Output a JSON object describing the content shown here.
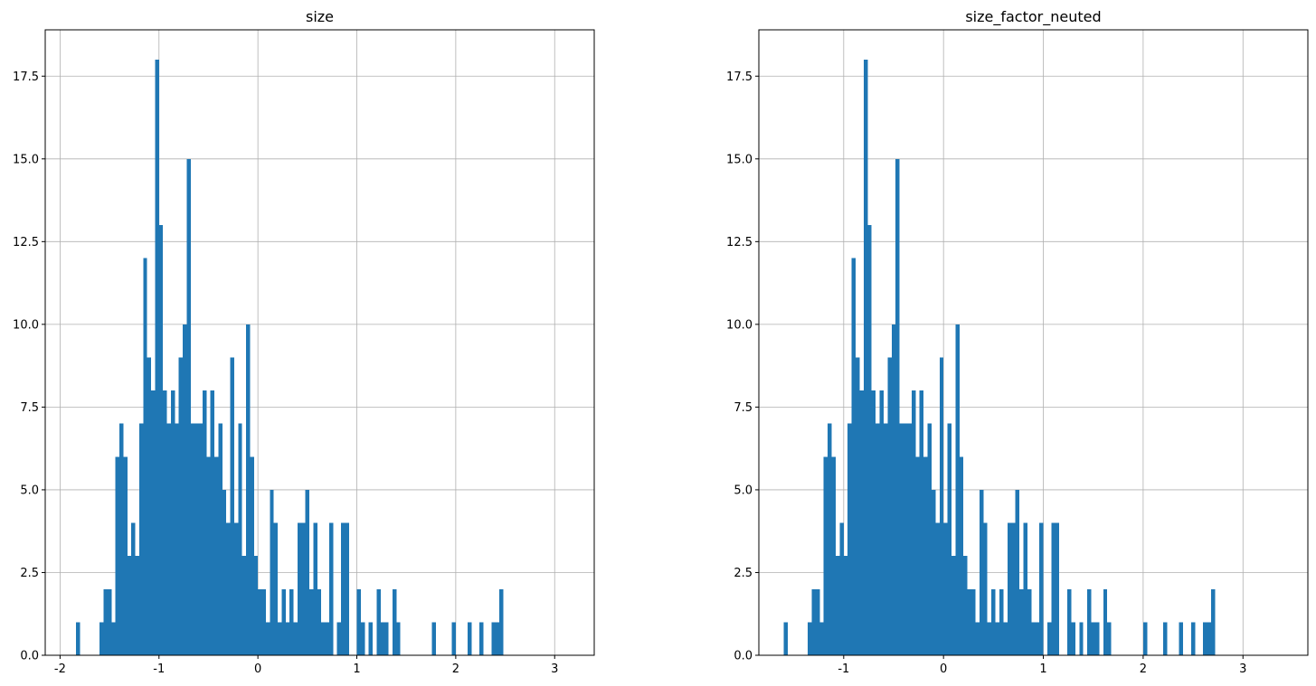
{
  "chart_data": [
    {
      "type": "bar",
      "title": "size",
      "xlabel": "",
      "ylabel": "",
      "xlim": [
        -2.15,
        3.4
      ],
      "ylim": [
        0,
        18.9
      ],
      "xticks": [
        -2,
        -1,
        0,
        1,
        2,
        3
      ],
      "yticks": [
        0.0,
        2.5,
        5.0,
        7.5,
        10.0,
        12.5,
        15.0,
        17.5
      ],
      "grid": true,
      "color": "#1f77b4",
      "bin_width": 0.04,
      "bins": [
        {
          "x": -1.84,
          "y": 1
        },
        {
          "x": -1.6,
          "y": 1
        },
        {
          "x": -1.56,
          "y": 2
        },
        {
          "x": -1.52,
          "y": 2
        },
        {
          "x": -1.48,
          "y": 1
        },
        {
          "x": -1.44,
          "y": 6
        },
        {
          "x": -1.4,
          "y": 7
        },
        {
          "x": -1.36,
          "y": 6
        },
        {
          "x": -1.32,
          "y": 3
        },
        {
          "x": -1.28,
          "y": 4
        },
        {
          "x": -1.24,
          "y": 3
        },
        {
          "x": -1.2,
          "y": 7
        },
        {
          "x": -1.16,
          "y": 12
        },
        {
          "x": -1.12,
          "y": 9
        },
        {
          "x": -1.08,
          "y": 8
        },
        {
          "x": -1.04,
          "y": 18
        },
        {
          "x": -1.0,
          "y": 13
        },
        {
          "x": -0.96,
          "y": 8
        },
        {
          "x": -0.92,
          "y": 7
        },
        {
          "x": -0.88,
          "y": 8
        },
        {
          "x": -0.84,
          "y": 7
        },
        {
          "x": -0.8,
          "y": 9
        },
        {
          "x": -0.76,
          "y": 10
        },
        {
          "x": -0.72,
          "y": 15
        },
        {
          "x": -0.68,
          "y": 7
        },
        {
          "x": -0.64,
          "y": 7
        },
        {
          "x": -0.6,
          "y": 7
        },
        {
          "x": -0.56,
          "y": 8
        },
        {
          "x": -0.52,
          "y": 6
        },
        {
          "x": -0.48,
          "y": 8
        },
        {
          "x": -0.44,
          "y": 6
        },
        {
          "x": -0.4,
          "y": 7
        },
        {
          "x": -0.36,
          "y": 5
        },
        {
          "x": -0.32,
          "y": 4
        },
        {
          "x": -0.28,
          "y": 9
        },
        {
          "x": -0.24,
          "y": 4
        },
        {
          "x": -0.2,
          "y": 7
        },
        {
          "x": -0.16,
          "y": 3
        },
        {
          "x": -0.12,
          "y": 10
        },
        {
          "x": -0.08,
          "y": 6
        },
        {
          "x": -0.04,
          "y": 3
        },
        {
          "x": 0.0,
          "y": 2
        },
        {
          "x": 0.04,
          "y": 2
        },
        {
          "x": 0.08,
          "y": 1
        },
        {
          "x": 0.12,
          "y": 5
        },
        {
          "x": 0.16,
          "y": 4
        },
        {
          "x": 0.2,
          "y": 1
        },
        {
          "x": 0.24,
          "y": 2
        },
        {
          "x": 0.28,
          "y": 1
        },
        {
          "x": 0.32,
          "y": 2
        },
        {
          "x": 0.36,
          "y": 1
        },
        {
          "x": 0.4,
          "y": 4
        },
        {
          "x": 0.44,
          "y": 4
        },
        {
          "x": 0.48,
          "y": 5
        },
        {
          "x": 0.52,
          "y": 2
        },
        {
          "x": 0.56,
          "y": 4
        },
        {
          "x": 0.6,
          "y": 2
        },
        {
          "x": 0.64,
          "y": 1
        },
        {
          "x": 0.68,
          "y": 1
        },
        {
          "x": 0.72,
          "y": 4
        },
        {
          "x": 0.76,
          "y": 0
        },
        {
          "x": 0.8,
          "y": 1
        },
        {
          "x": 0.84,
          "y": 4
        },
        {
          "x": 0.88,
          "y": 4
        },
        {
          "x": 0.92,
          "y": 0
        },
        {
          "x": 1.0,
          "y": 2
        },
        {
          "x": 1.04,
          "y": 1
        },
        {
          "x": 1.08,
          "y": 0
        },
        {
          "x": 1.12,
          "y": 1
        },
        {
          "x": 1.2,
          "y": 2
        },
        {
          "x": 1.24,
          "y": 1
        },
        {
          "x": 1.28,
          "y": 1
        },
        {
          "x": 1.32,
          "y": 0
        },
        {
          "x": 1.36,
          "y": 2
        },
        {
          "x": 1.4,
          "y": 1
        },
        {
          "x": 1.76,
          "y": 1
        },
        {
          "x": 1.96,
          "y": 1
        },
        {
          "x": 2.12,
          "y": 1
        },
        {
          "x": 2.24,
          "y": 1
        },
        {
          "x": 2.36,
          "y": 1
        },
        {
          "x": 2.4,
          "y": 1
        },
        {
          "x": 2.44,
          "y": 2
        }
      ]
    },
    {
      "type": "bar",
      "title": "size_factor_neuted",
      "xlabel": "",
      "ylabel": "",
      "xlim": [
        -1.85,
        3.65
      ],
      "ylim": [
        0,
        18.9
      ],
      "xticks": [
        -1,
        0,
        1,
        2,
        3
      ],
      "yticks": [
        0.0,
        2.5,
        5.0,
        7.5,
        10.0,
        12.5,
        15.0,
        17.5
      ],
      "grid": true,
      "color": "#1f77b4",
      "bin_width": 0.04,
      "bins": [
        {
          "x": -1.6,
          "y": 1
        },
        {
          "x": -1.36,
          "y": 1
        },
        {
          "x": -1.32,
          "y": 2
        },
        {
          "x": -1.28,
          "y": 2
        },
        {
          "x": -1.24,
          "y": 1
        },
        {
          "x": -1.2,
          "y": 6
        },
        {
          "x": -1.16,
          "y": 7
        },
        {
          "x": -1.12,
          "y": 6
        },
        {
          "x": -1.08,
          "y": 3
        },
        {
          "x": -1.04,
          "y": 4
        },
        {
          "x": -1.0,
          "y": 3
        },
        {
          "x": -0.96,
          "y": 7
        },
        {
          "x": -0.92,
          "y": 12
        },
        {
          "x": -0.88,
          "y": 9
        },
        {
          "x": -0.84,
          "y": 8
        },
        {
          "x": -0.8,
          "y": 18
        },
        {
          "x": -0.76,
          "y": 13
        },
        {
          "x": -0.72,
          "y": 8
        },
        {
          "x": -0.68,
          "y": 7
        },
        {
          "x": -0.64,
          "y": 8
        },
        {
          "x": -0.6,
          "y": 7
        },
        {
          "x": -0.56,
          "y": 9
        },
        {
          "x": -0.52,
          "y": 10
        },
        {
          "x": -0.48,
          "y": 15
        },
        {
          "x": -0.44,
          "y": 7
        },
        {
          "x": -0.4,
          "y": 7
        },
        {
          "x": -0.36,
          "y": 7
        },
        {
          "x": -0.32,
          "y": 8
        },
        {
          "x": -0.28,
          "y": 6
        },
        {
          "x": -0.24,
          "y": 8
        },
        {
          "x": -0.2,
          "y": 6
        },
        {
          "x": -0.16,
          "y": 7
        },
        {
          "x": -0.12,
          "y": 5
        },
        {
          "x": -0.08,
          "y": 4
        },
        {
          "x": -0.04,
          "y": 9
        },
        {
          "x": 0.0,
          "y": 4
        },
        {
          "x": 0.04,
          "y": 7
        },
        {
          "x": 0.08,
          "y": 3
        },
        {
          "x": 0.12,
          "y": 10
        },
        {
          "x": 0.16,
          "y": 6
        },
        {
          "x": 0.2,
          "y": 3
        },
        {
          "x": 0.24,
          "y": 2
        },
        {
          "x": 0.28,
          "y": 2
        },
        {
          "x": 0.32,
          "y": 1
        },
        {
          "x": 0.36,
          "y": 5
        },
        {
          "x": 0.4,
          "y": 4
        },
        {
          "x": 0.44,
          "y": 1
        },
        {
          "x": 0.48,
          "y": 2
        },
        {
          "x": 0.52,
          "y": 1
        },
        {
          "x": 0.56,
          "y": 2
        },
        {
          "x": 0.6,
          "y": 1
        },
        {
          "x": 0.64,
          "y": 4
        },
        {
          "x": 0.68,
          "y": 4
        },
        {
          "x": 0.72,
          "y": 5
        },
        {
          "x": 0.76,
          "y": 2
        },
        {
          "x": 0.8,
          "y": 4
        },
        {
          "x": 0.84,
          "y": 2
        },
        {
          "x": 0.88,
          "y": 1
        },
        {
          "x": 0.92,
          "y": 1
        },
        {
          "x": 0.96,
          "y": 4
        },
        {
          "x": 1.0,
          "y": 0
        },
        {
          "x": 1.04,
          "y": 1
        },
        {
          "x": 1.08,
          "y": 4
        },
        {
          "x": 1.12,
          "y": 4
        },
        {
          "x": 1.16,
          "y": 0
        },
        {
          "x": 1.24,
          "y": 2
        },
        {
          "x": 1.28,
          "y": 1
        },
        {
          "x": 1.32,
          "y": 0
        },
        {
          "x": 1.36,
          "y": 1
        },
        {
          "x": 1.44,
          "y": 2
        },
        {
          "x": 1.48,
          "y": 1
        },
        {
          "x": 1.52,
          "y": 1
        },
        {
          "x": 1.56,
          "y": 0
        },
        {
          "x": 1.6,
          "y": 2
        },
        {
          "x": 1.64,
          "y": 1
        },
        {
          "x": 2.0,
          "y": 1
        },
        {
          "x": 2.2,
          "y": 1
        },
        {
          "x": 2.36,
          "y": 1
        },
        {
          "x": 2.48,
          "y": 1
        },
        {
          "x": 2.6,
          "y": 1
        },
        {
          "x": 2.64,
          "y": 1
        },
        {
          "x": 2.68,
          "y": 2
        }
      ]
    }
  ]
}
